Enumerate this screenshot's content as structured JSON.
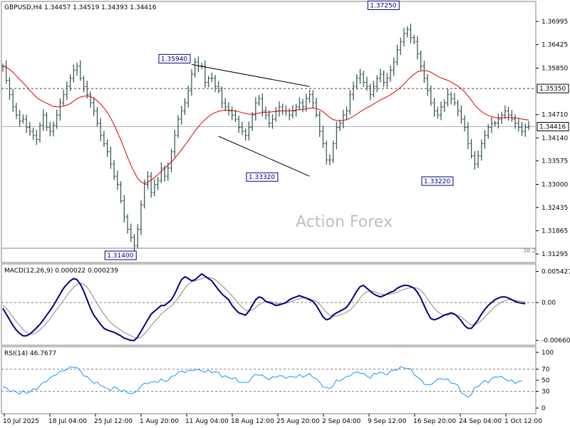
{
  "chart_data": [
    {
      "panel": "price",
      "type": "ohlc",
      "symbol_info": "GBPUSD,H4  1.34457 1.34519 1.34393 1.34416",
      "watermark": "Action Forex",
      "y_ticks": [
        "1.36995",
        "1.36425",
        "1.35850",
        "1.34710",
        "1.34140",
        "1.33575",
        "1.33000",
        "1.32435",
        "1.31865",
        "1.31295"
      ],
      "ylim": [
        1.3112,
        1.3745
      ],
      "x_ticks": [
        "10 Jul 2025",
        "18 Jul 04:00",
        "25 Jul 12:00",
        "1 Aug 20:00",
        "11 Aug 04:00",
        "18 Aug 12:00",
        "25 Aug 20:00",
        "2 Sep 04:00",
        "9 Sep 12:00",
        "16 Sep 20:00",
        "24 Sep 04:00",
        "1 Oct 12:00"
      ],
      "series": [
        {
          "close": [
            1.359,
            1.3555,
            1.352,
            1.349,
            1.347,
            1.3455,
            1.346,
            1.344,
            1.343,
            1.342,
            1.341,
            1.3445,
            1.347,
            1.344,
            1.343,
            1.3445,
            1.347,
            1.35,
            1.352,
            1.354,
            1.356,
            1.358,
            1.359,
            1.356,
            1.354,
            1.352,
            1.35,
            1.348,
            1.345,
            1.342,
            1.34,
            1.338,
            1.335,
            1.332,
            1.33,
            1.326,
            1.322,
            1.319,
            1.317,
            1.315,
            1.319,
            1.325,
            1.33,
            1.332,
            1.328,
            1.33,
            1.331,
            1.334,
            1.332,
            1.334,
            1.338,
            1.342,
            1.346,
            1.348,
            1.35,
            1.353,
            1.357,
            1.36,
            1.359,
            1.359,
            1.355,
            1.356,
            1.356,
            1.354,
            1.353,
            1.35,
            1.349,
            1.348,
            1.347,
            1.346,
            1.344,
            1.343,
            1.342,
            1.344,
            1.347,
            1.35,
            1.351,
            1.348,
            1.347,
            1.345,
            1.346,
            1.348,
            1.349,
            1.348,
            1.348,
            1.347,
            1.348,
            1.349,
            1.35,
            1.349,
            1.351,
            1.352,
            1.35,
            1.347,
            1.343,
            1.34,
            1.336,
            1.336,
            1.34,
            1.344,
            1.345,
            1.347,
            1.348,
            1.352,
            1.354,
            1.356,
            1.357,
            1.355,
            1.354,
            1.352,
            1.354,
            1.356,
            1.357,
            1.355,
            1.356,
            1.358,
            1.36,
            1.363,
            1.365,
            1.367,
            1.368,
            1.366,
            1.365,
            1.362,
            1.359,
            1.356,
            1.353,
            1.35,
            1.348,
            1.347,
            1.349,
            1.35,
            1.352,
            1.351,
            1.35,
            1.348,
            1.346,
            1.344,
            1.34,
            1.337,
            1.335,
            1.337,
            1.34,
            1.342,
            1.344,
            1.345,
            1.345,
            1.346,
            1.347,
            1.348,
            1.347,
            1.346,
            1.345,
            1.344,
            1.343,
            1.344,
            1.3442
          ],
          "name": "",
          "values": []
        },
        {
          "name": "",
          "values": [
            1.359,
            1.3587,
            1.3582,
            1.3575,
            1.3566,
            1.3557,
            1.3549,
            1.354,
            1.3531,
            1.3522,
            1.3513,
            1.3507,
            1.3503,
            1.3499,
            1.3495,
            1.3491,
            1.349,
            1.349,
            1.3492,
            1.3494,
            1.3498,
            1.3504,
            1.351,
            1.3514,
            1.3516,
            1.3517,
            1.3515,
            1.3511,
            1.3505,
            1.3497,
            1.3487,
            1.3476,
            1.3462,
            1.3446,
            1.3428,
            1.3409,
            1.3388,
            1.3367,
            1.3347,
            1.333,
            1.3315,
            1.3306,
            1.3302,
            1.3305,
            1.3311,
            1.3317,
            1.3324,
            1.3332,
            1.3339,
            1.3347,
            1.3355,
            1.3364,
            1.3374,
            1.3385,
            1.3396,
            1.3407,
            1.3419,
            1.3431,
            1.3441,
            1.3451,
            1.3459,
            1.3466,
            1.3472,
            1.3476,
            1.3479,
            1.3481,
            1.3482,
            1.3482,
            1.3481,
            1.348,
            1.3478,
            1.3476,
            1.3474,
            1.3472,
            1.3472,
            1.3473,
            1.3475,
            1.3476,
            1.3477,
            1.3477,
            1.3478,
            1.3479,
            1.348,
            1.348,
            1.348,
            1.348,
            1.3481,
            1.3482,
            1.3483,
            1.3484,
            1.3485,
            1.3487,
            1.3487,
            1.3486,
            1.3483,
            1.3478,
            1.3471,
            1.3464,
            1.3459,
            1.3457,
            1.3456,
            1.3457,
            1.3459,
            1.3462,
            1.3467,
            1.3472,
            1.3478,
            1.3483,
            1.3488,
            1.3492,
            1.3497,
            1.3502,
            1.3507,
            1.3511,
            1.3515,
            1.352,
            1.3525,
            1.3531,
            1.3538,
            1.3546,
            1.3555,
            1.3563,
            1.357,
            1.3576,
            1.3578,
            1.3579,
            1.3578,
            1.3575,
            1.357,
            1.3565,
            1.3561,
            1.3558,
            1.3555,
            1.3551,
            1.3546,
            1.3541,
            1.3535,
            1.3527,
            1.3517,
            1.3506,
            1.3495,
            1.3486,
            1.3479,
            1.3473,
            1.3469,
            1.3466,
            1.3464,
            1.3463,
            1.3463,
            1.3464,
            1.3464,
            1.3464,
            1.3463,
            1.3462,
            1.346,
            1.3459,
            1.3458
          ]
        }
      ],
      "moving_average_name": "",
      "horizontal_lines": [
        {
          "value": 1.3535,
          "label": "1.35350",
          "style": "dashed"
        },
        {
          "value": 1.34416,
          "label": "1.34416",
          "style": "solid"
        }
      ],
      "price_labels": [
        {
          "text": "1.31400",
          "value": 1.314
        },
        {
          "text": "1.35940",
          "value": 1.3594
        },
        {
          "text": "1.33320",
          "value": 1.3332
        },
        {
          "text": "1.37250",
          "value": 1.3725
        },
        {
          "text": "1.33220",
          "value": 1.3322
        }
      ],
      "fib_label": "38.2",
      "channel_lines": [
        {
          "x0": 56,
          "y0": 1.3594,
          "x1": 91,
          "y1": 1.354
        },
        {
          "x0": 64,
          "y0": 1.3418,
          "x1": 91,
          "y1": 1.332
        }
      ]
    },
    {
      "panel": "macd",
      "type": "line",
      "title": "MACD(12,26,9) 0.000022 0.000239",
      "y_ticks": [
        "0.005427",
        "0.00",
        "-0.006603"
      ],
      "ylim": [
        -0.0072,
        0.006
      ],
      "series": [
        {
          "name": "",
          "values": [
            -0.001,
            -0.002,
            -0.003,
            -0.004,
            -0.0048,
            -0.0054,
            -0.0058,
            -0.0058,
            -0.0055,
            -0.005,
            -0.0044,
            -0.0038,
            -0.003,
            -0.0022,
            -0.0014,
            -0.0005,
            0.0005,
            0.0015,
            0.0025,
            0.0032,
            0.0038,
            0.0042,
            0.004,
            0.0032,
            0.002,
            0.0005,
            -0.001,
            -0.0022,
            -0.003,
            -0.0038,
            -0.0045,
            -0.0048,
            -0.005,
            -0.0052,
            -0.0055,
            -0.0058,
            -0.0062,
            -0.0064,
            -0.0066,
            -0.0066,
            -0.006,
            -0.005,
            -0.004,
            -0.003,
            -0.002,
            -0.0015,
            -0.001,
            -0.0005,
            -0.0005,
            0.0,
            0.0005,
            0.0015,
            0.0028,
            0.004,
            0.0045,
            0.0042,
            0.0038,
            0.004,
            0.0045,
            0.005,
            0.0046,
            0.0042,
            0.0038,
            0.003,
            0.0022,
            0.0015,
            0.001,
            0.0005,
            -0.0005,
            -0.0012,
            -0.0018,
            -0.002,
            -0.0022,
            -0.0015,
            -0.0005,
            0.0005,
            0.001,
            0.0008,
            0.0002,
            0.0,
            -0.0002,
            -0.0005,
            -0.0004,
            -0.0002,
            0.0,
            0.0005,
            0.0008,
            0.001,
            0.0012,
            0.001,
            0.0008,
            0.0005,
            0.0002,
            -0.0005,
            -0.0015,
            -0.0025,
            -0.003,
            -0.0028,
            -0.0022,
            -0.0018,
            -0.0015,
            -0.0012,
            -0.0008,
            0.0,
            0.001,
            0.002,
            0.0028,
            0.003,
            0.0025,
            0.002,
            0.0015,
            0.0012,
            0.001,
            0.0012,
            0.0015,
            0.0018,
            0.002,
            0.0025,
            0.0028,
            0.003,
            0.003,
            0.0028,
            0.0025,
            0.0018,
            0.0008,
            -0.0005,
            -0.0018,
            -0.0028,
            -0.003,
            -0.0028,
            -0.0025,
            -0.0022,
            -0.002,
            -0.0018,
            -0.002,
            -0.0025,
            -0.0032,
            -0.004,
            -0.0045,
            -0.0045,
            -0.0038,
            -0.003,
            -0.002,
            -0.0012,
            -0.0005,
            0.0,
            0.0005,
            0.0008,
            0.001,
            0.001,
            0.0008,
            0.0005,
            0.0002,
            0.0,
            -0.0001,
            -0.0002
          ]
        },
        {
          "name": "",
          "values": [
            -0.0005,
            -0.001,
            -0.0017,
            -0.0025,
            -0.0033,
            -0.004,
            -0.0047,
            -0.0052,
            -0.0055,
            -0.0055,
            -0.0052,
            -0.0048,
            -0.0042,
            -0.0035,
            -0.0028,
            -0.002,
            -0.0012,
            -0.0004,
            0.0004,
            0.0012,
            0.002,
            0.0027,
            0.0032,
            0.0034,
            0.0032,
            0.0027,
            0.0018,
            0.0008,
            -0.0002,
            -0.0012,
            -0.002,
            -0.0028,
            -0.0035,
            -0.004,
            -0.0044,
            -0.0048,
            -0.0052,
            -0.0055,
            -0.0058,
            -0.0061,
            -0.0062,
            -0.006,
            -0.0055,
            -0.0048,
            -0.004,
            -0.0033,
            -0.0027,
            -0.002,
            -0.0015,
            -0.001,
            -0.0006,
            0.0,
            0.0008,
            0.0016,
            0.0025,
            0.0032,
            0.0036,
            0.0038,
            0.004,
            0.0042,
            0.0044,
            0.0044,
            0.0043,
            0.004,
            0.0035,
            0.003,
            0.0024,
            0.0018,
            0.0012,
            0.0005,
            -0.0002,
            -0.0008,
            -0.0013,
            -0.0015,
            -0.0013,
            -0.0009,
            -0.0004,
            0.0,
            0.0002,
            0.0002,
            0.0001,
            -0.0001,
            -0.0002,
            -0.0002,
            -0.0001,
            0.0001,
            0.0003,
            0.0005,
            0.0007,
            0.0008,
            0.0008,
            0.0007,
            0.0005,
            0.0002,
            -0.0003,
            -0.001,
            -0.0017,
            -0.0022,
            -0.0024,
            -0.0023,
            -0.0022,
            -0.002,
            -0.0017,
            -0.0013,
            -0.0007,
            0.0,
            0.0008,
            0.0015,
            0.0019,
            0.002,
            0.0019,
            0.0017,
            0.0015,
            0.0014,
            0.0014,
            0.0015,
            0.0016,
            0.0018,
            0.0021,
            0.0023,
            0.0025,
            0.0026,
            0.0026,
            0.0025,
            0.0021,
            0.0015,
            0.0007,
            -0.0002,
            -0.001,
            -0.0016,
            -0.002,
            -0.0022,
            -0.0022,
            -0.0021,
            -0.0021,
            -0.0022,
            -0.0025,
            -0.003,
            -0.0035,
            -0.0039,
            -0.0039,
            -0.0036,
            -0.0031,
            -0.0025,
            -0.0019,
            -0.0013,
            -0.0007,
            -0.0003,
            0.0001,
            0.0004,
            0.0005,
            0.0005,
            0.0004,
            0.0003,
            0.0002,
            0.0001
          ]
        }
      ]
    },
    {
      "panel": "rsi",
      "type": "line",
      "title": "RSI(14) 46.7677",
      "y_ticks": [
        "100",
        "70",
        "50",
        "30",
        "0"
      ],
      "ylim": [
        0,
        100
      ],
      "levels": [
        70,
        30
      ],
      "series": [
        {
          "name": "",
          "values": [
            38,
            35,
            32,
            30,
            28,
            27,
            29,
            27,
            30,
            32,
            35,
            40,
            45,
            50,
            53,
            58,
            62,
            64,
            68,
            70,
            72,
            75,
            72,
            66,
            60,
            55,
            50,
            46,
            44,
            42,
            38,
            33,
            34,
            37,
            35,
            32,
            30,
            28,
            27,
            25,
            33,
            40,
            43,
            46,
            45,
            47,
            48,
            50,
            49,
            50,
            55,
            60,
            64,
            65,
            66,
            66,
            67,
            70,
            67,
            68,
            65,
            66,
            66,
            64,
            63,
            58,
            56,
            55,
            54,
            52,
            48,
            46,
            44,
            49,
            55,
            60,
            61,
            57,
            55,
            52,
            54,
            57,
            58,
            56,
            56,
            55,
            56,
            57,
            58,
            57,
            59,
            60,
            57,
            52,
            45,
            40,
            35,
            35,
            42,
            48,
            50,
            53,
            55,
            60,
            62,
            64,
            65,
            60,
            58,
            55,
            60,
            63,
            65,
            60,
            62,
            65,
            68,
            70,
            72,
            73,
            72,
            68,
            62,
            55,
            50,
            45,
            40,
            42,
            48,
            50,
            54,
            52,
            50,
            47,
            43,
            40,
            30,
            22,
            20,
            26,
            35,
            40,
            45,
            48,
            48,
            52,
            55,
            58,
            55,
            52,
            50,
            48,
            46,
            48,
            46.8
          ]
        }
      ]
    }
  ]
}
